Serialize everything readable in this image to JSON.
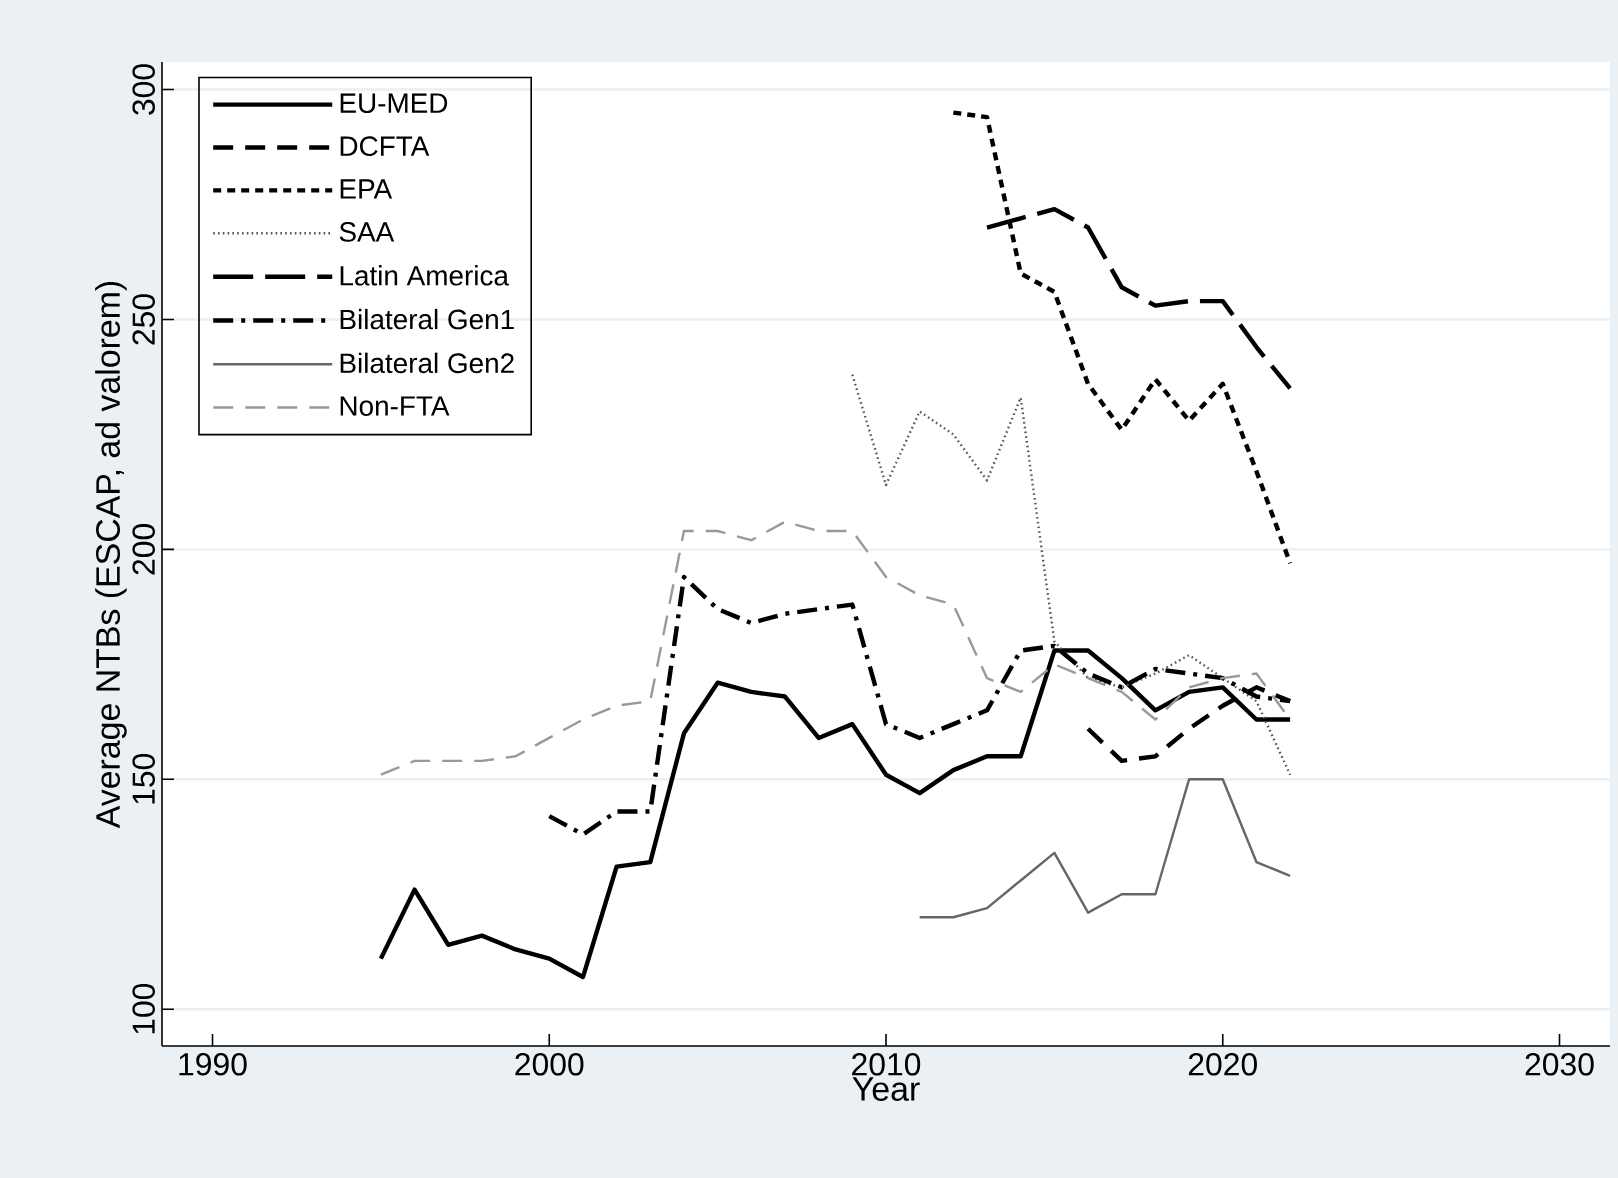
{
  "chart_data": {
    "type": "line",
    "xlabel": "Year",
    "ylabel": "Average NTBs (ESCAP, ad valorem)",
    "xlim": [
      1988.5,
      2031.5
    ],
    "ylim": [
      92,
      306
    ],
    "xticks": [
      1990,
      2000,
      2010,
      2020,
      2030
    ],
    "yticks": [
      100,
      150,
      200,
      250,
      300
    ],
    "grid": "y",
    "legend": "top left",
    "series": [
      {
        "name": "EU-MED",
        "color": "#000000",
        "line_style": "solid",
        "x": [
          1995,
          1996,
          1997,
          1998,
          1999,
          2000,
          2001,
          2002,
          2003,
          2004,
          2005,
          2006,
          2007,
          2008,
          2009,
          2010,
          2011,
          2012,
          2013,
          2014,
          2015,
          2016,
          2017,
          2018,
          2019,
          2020,
          2021,
          2022
        ],
        "values": [
          111,
          126,
          114,
          116,
          113,
          111,
          107,
          131,
          132,
          160,
          171,
          169,
          168,
          159,
          162,
          151,
          147,
          152,
          155,
          155,
          178,
          178,
          172,
          165,
          169,
          170,
          163,
          163
        ]
      },
      {
        "name": "DCFTA",
        "color": "#000000",
        "line_style": "dashed",
        "x": [
          2016,
          2017,
          2018,
          2019,
          2020,
          2021,
          2022
        ],
        "values": [
          161,
          154,
          155,
          161,
          166,
          170,
          167
        ]
      },
      {
        "name": "EPA",
        "color": "#000000",
        "line_style": "shortdash",
        "x": [
          2012,
          2013,
          2014,
          2015,
          2016,
          2017,
          2018,
          2019,
          2020,
          2021,
          2022
        ],
        "values": [
          295,
          294,
          260,
          256,
          236,
          226,
          237,
          228,
          236,
          217,
          197
        ]
      },
      {
        "name": "SAA",
        "color": "#555555",
        "line_style": "dotted",
        "x": [
          2009,
          2010,
          2011,
          2012,
          2013,
          2014,
          2015,
          2016,
          2017,
          2018,
          2019,
          2020,
          2021,
          2022
        ],
        "values": [
          238,
          214,
          230,
          225,
          215,
          233,
          180,
          172,
          170,
          173,
          177,
          172,
          167,
          151
        ]
      },
      {
        "name": "Latin America",
        "color": "#000000",
        "line_style": "longdash",
        "x": [
          2013,
          2014,
          2015,
          2016,
          2017,
          2018,
          2019,
          2020,
          2021,
          2022
        ],
        "values": [
          270,
          272,
          274,
          270,
          257,
          253,
          254,
          254,
          244,
          235
        ]
      },
      {
        "name": "Bilateral Gen1",
        "color": "#000000",
        "line_style": "dashdot",
        "x": [
          2000,
          2001,
          2002,
          2003,
          2004,
          2005,
          2006,
          2007,
          2008,
          2009,
          2010,
          2011,
          2012,
          2013,
          2014,
          2015,
          2016,
          2017,
          2018,
          2019,
          2020,
          2021,
          2022
        ],
        "values": [
          142,
          138,
          143,
          143,
          194,
          187,
          184,
          186,
          187,
          188,
          162,
          159,
          162,
          165,
          178,
          179,
          173,
          170,
          174,
          173,
          172,
          168,
          167
        ]
      },
      {
        "name": "Bilateral Gen2",
        "color": "#666666",
        "line_style": "solid",
        "x": [
          2011,
          2012,
          2013,
          2014,
          2015,
          2016,
          2017,
          2018,
          2019,
          2020,
          2021,
          2022
        ],
        "values": [
          120,
          120,
          122,
          128,
          134,
          121,
          125,
          125,
          150,
          150,
          132,
          129
        ]
      },
      {
        "name": "Non-FTA",
        "color": "#999999",
        "line_style": "dashed",
        "x": [
          1995,
          1996,
          1997,
          1998,
          1999,
          2000,
          2001,
          2002,
          2003,
          2004,
          2005,
          2006,
          2007,
          2008,
          2009,
          2010,
          2011,
          2012,
          2013,
          2014,
          2015,
          2016,
          2017,
          2018,
          2019,
          2020,
          2021,
          2022
        ],
        "values": [
          151,
          154,
          154,
          154,
          155,
          159,
          163,
          166,
          167,
          204,
          204,
          202,
          206,
          204,
          204,
          194,
          190,
          188,
          172,
          169,
          175,
          172,
          169,
          163,
          170,
          172,
          173,
          163
        ]
      }
    ]
  }
}
